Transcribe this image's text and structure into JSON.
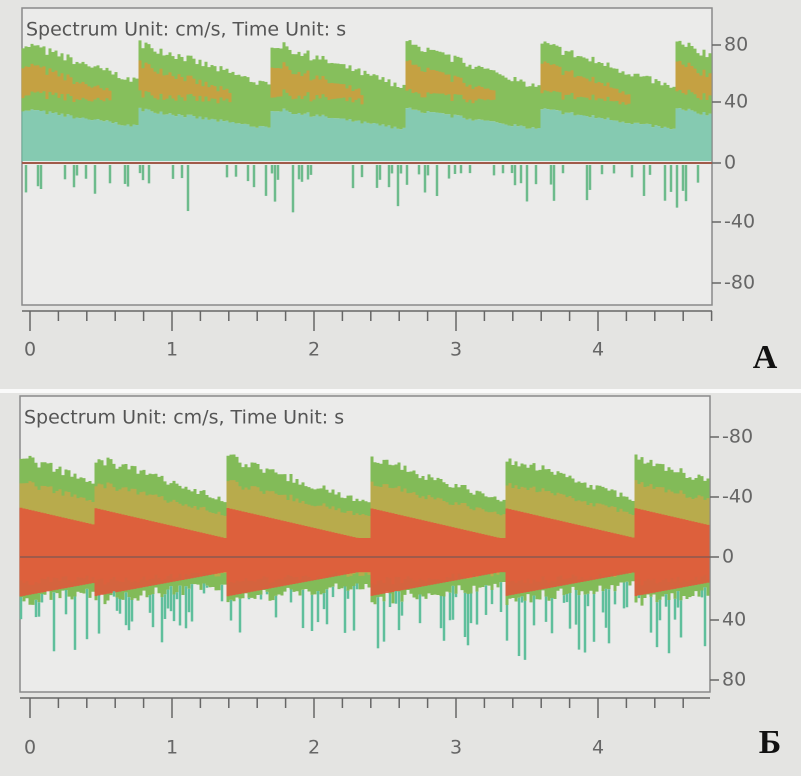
{
  "panels": [
    {
      "title": "Spectrum Unit: cm/s, Time Unit: s",
      "label": "A",
      "yticks": [
        "80",
        "40",
        "0",
        "-40",
        "-80"
      ],
      "xticks": [
        "0",
        "1",
        "2",
        "3",
        "4"
      ]
    },
    {
      "title": "Spectrum Unit: cm/s, Time Unit: s",
      "label": "Б",
      "yticks": [
        "-80",
        "-40",
        "0",
        "40",
        "80"
      ],
      "xticks": [
        "0",
        "1",
        "2",
        "3",
        "4"
      ]
    }
  ]
}
